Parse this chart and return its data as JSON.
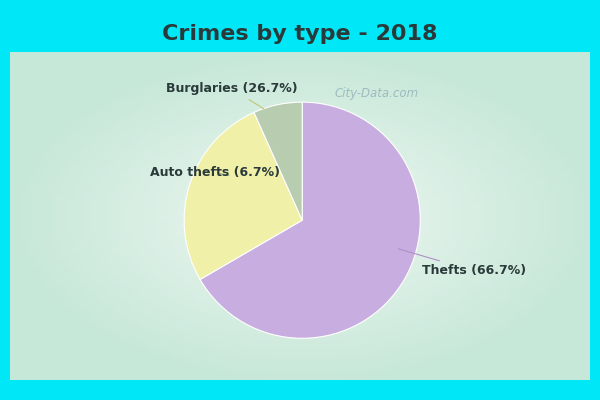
{
  "title": "Crimes by type - 2018",
  "slices": [
    {
      "label": "Thefts (66.7%)",
      "value": 66.7,
      "color": "#c8aee0"
    },
    {
      "label": "Burglaries (26.7%)",
      "value": 26.7,
      "color": "#f0f0a8"
    },
    {
      "label": "Auto thefts (6.7%)",
      "value": 6.7,
      "color": "#b8ccb0"
    }
  ],
  "bg_color_cyan": "#00e8f8",
  "bg_color_main": "#e0f0e8",
  "title_fontsize": 16,
  "label_fontsize": 9,
  "watermark": "City-Data.com",
  "startangle": 90,
  "title_color": "#2a3a3a"
}
